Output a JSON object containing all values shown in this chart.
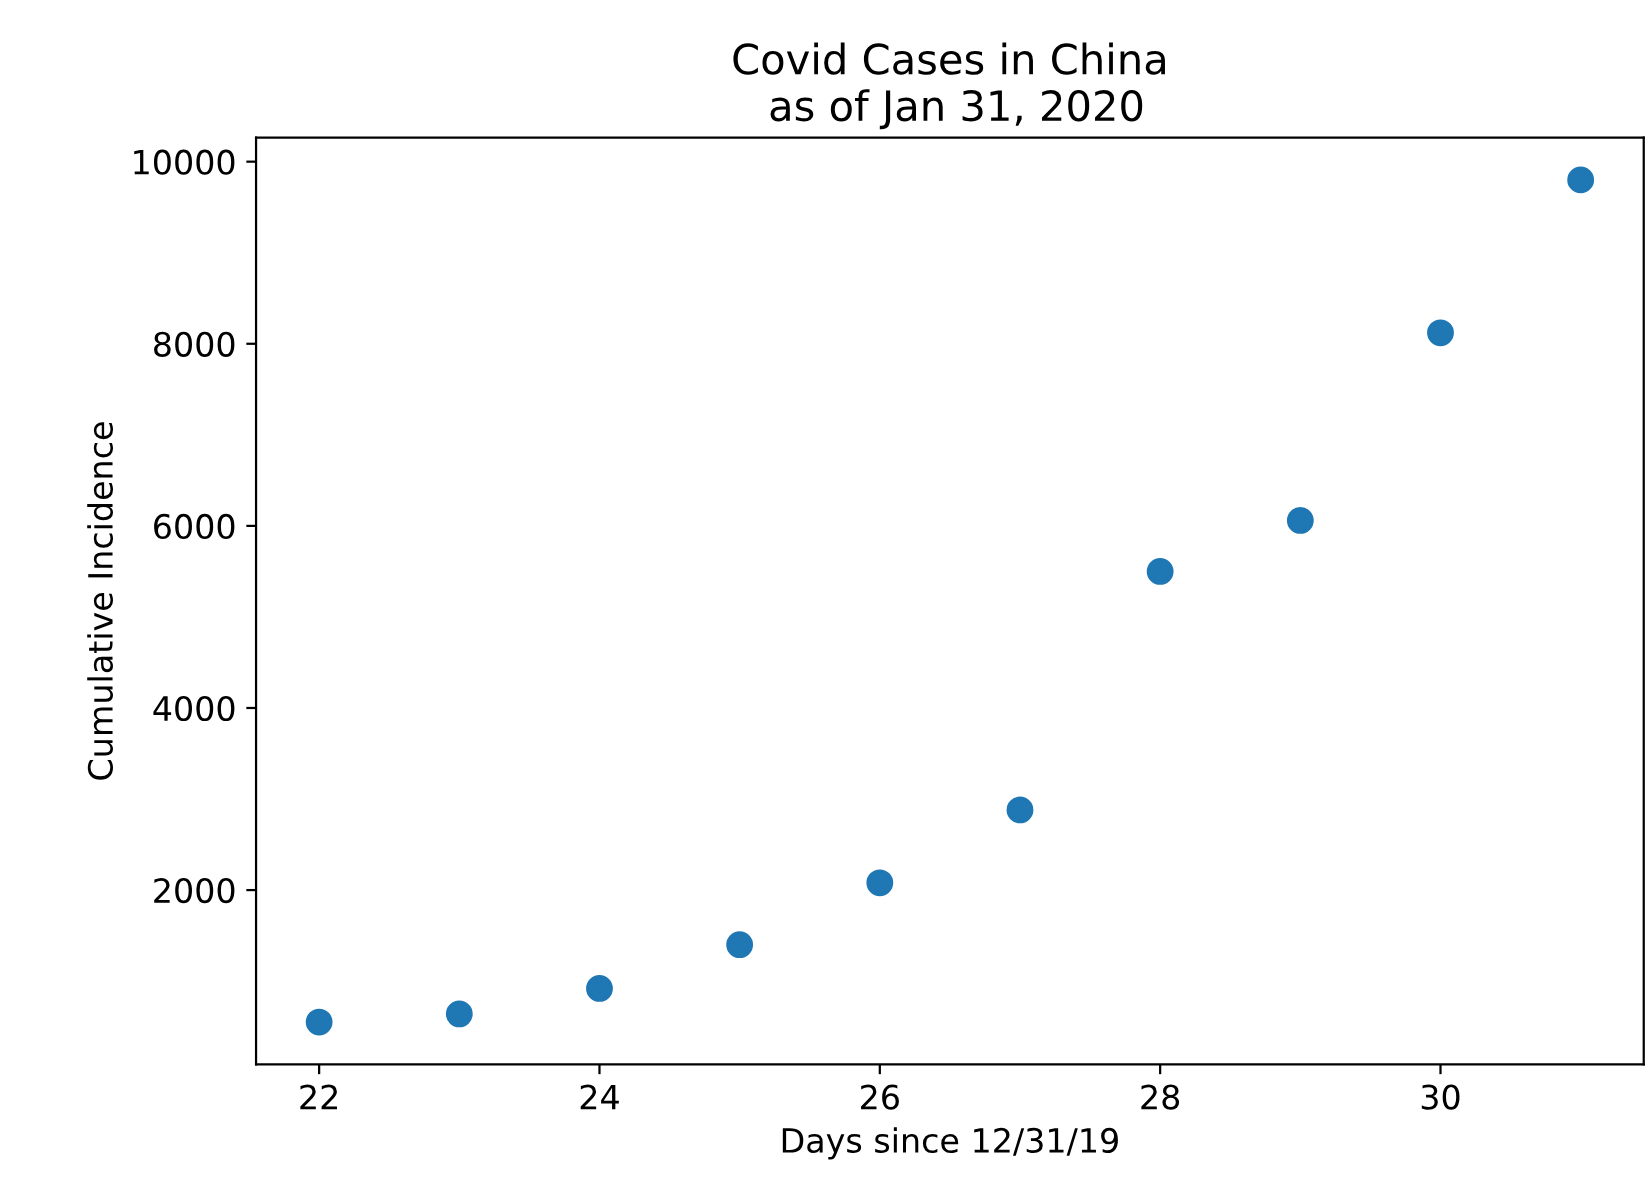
{
  "chart_data": {
    "type": "scatter",
    "title": "Covid Cases in China\n as of Jan 31, 2020",
    "xlabel": "Days since 12/31/19",
    "ylabel": "Cumulative Incidence",
    "x": [
      22,
      23,
      24,
      25,
      26,
      27,
      28,
      29,
      30,
      31
    ],
    "series": [
      {
        "color": "#1f77b4",
        "values": [
          550,
          640,
          920,
          1400,
          2080,
          2880,
          5500,
          6060,
          8120,
          9800
        ]
      }
    ],
    "xlim": [
      21.55,
      31.45
    ],
    "ylim": [
      85,
      10265
    ],
    "xticks": [
      22,
      24,
      26,
      28,
      30
    ],
    "yticks": [
      2000,
      4000,
      6000,
      8000,
      10000
    ],
    "marker": "circle",
    "grid": false,
    "legend": false
  }
}
